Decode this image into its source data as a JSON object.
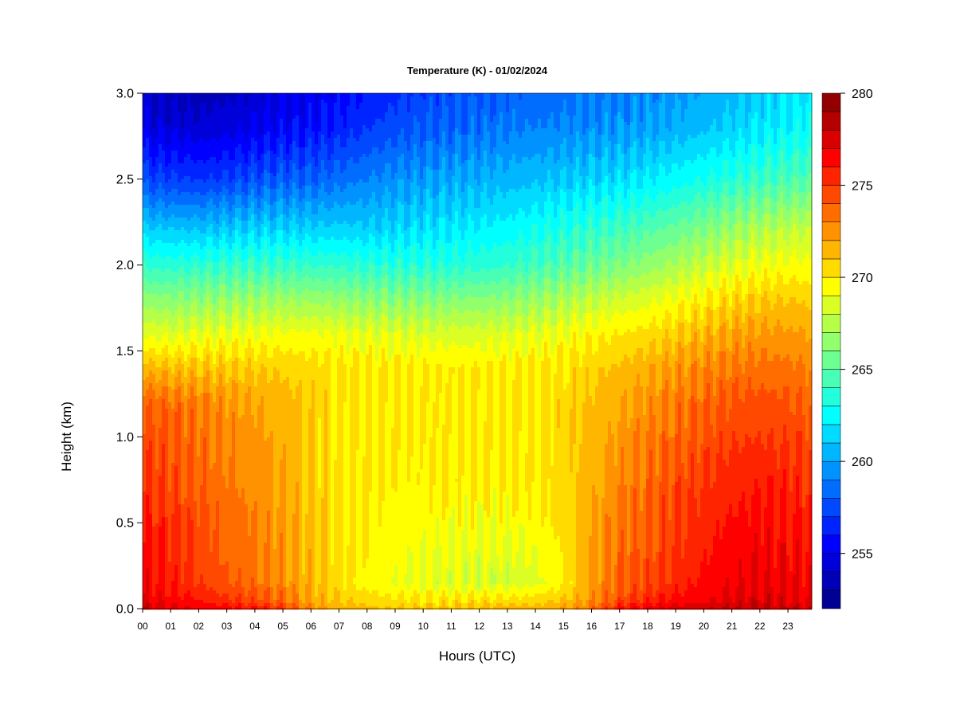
{
  "chart_data": {
    "type": "heatmap",
    "title": "Temperature (K) - 01/02/2024",
    "xlabel": "Hours (UTC)",
    "ylabel": "Height (km)",
    "xlim": [
      0,
      23.85
    ],
    "ylim": [
      0.0,
      3.0
    ],
    "x_ticks": [
      "00",
      "01",
      "02",
      "03",
      "04",
      "05",
      "06",
      "07",
      "08",
      "09",
      "10",
      "11",
      "12",
      "13",
      "14",
      "15",
      "16",
      "17",
      "18",
      "19",
      "20",
      "21",
      "22",
      "23"
    ],
    "y_ticks": [
      "0.0",
      "0.5",
      "1.0",
      "1.5",
      "2.0",
      "2.5",
      "3.0"
    ],
    "hours": [
      0,
      1,
      2,
      3,
      4,
      5,
      6,
      7,
      8,
      9,
      10,
      11,
      12,
      13,
      14,
      15,
      16,
      17,
      18,
      19,
      20,
      21,
      22,
      23,
      23.85
    ],
    "heights_km": [
      0.0,
      0.05,
      0.15,
      0.3,
      0.5,
      0.75,
      1.0,
      1.2,
      1.4,
      1.6,
      1.8,
      2.0,
      2.2,
      2.5,
      2.8,
      3.0
    ],
    "temperature_K": [
      [
        277.8,
        277.2,
        277.0,
        276.5,
        276.0,
        275.0,
        272.5,
        271.5,
        271.3,
        271.0,
        271.0,
        271.2,
        271.3,
        271.4,
        271.5,
        272.0,
        273.5,
        276.0,
        277.0,
        277.5,
        277.8,
        278.0,
        278.0,
        277.8,
        277.5
      ],
      [
        277.0,
        276.5,
        276.0,
        275.2,
        274.5,
        273.5,
        272.0,
        271.0,
        270.5,
        270.2,
        270.2,
        270.2,
        270.3,
        270.3,
        270.5,
        271.0,
        272.5,
        274.5,
        275.5,
        276.3,
        276.8,
        277.3,
        277.5,
        277.3,
        277.0
      ],
      [
        276.5,
        275.8,
        275.0,
        274.2,
        273.5,
        272.8,
        271.5,
        270.3,
        269.6,
        269.0,
        268.8,
        268.6,
        268.4,
        268.3,
        268.7,
        269.8,
        272.2,
        273.8,
        274.6,
        275.5,
        276.2,
        276.8,
        277.0,
        276.8,
        276.4
      ],
      [
        276.2,
        275.5,
        274.6,
        273.8,
        273.2,
        272.5,
        271.2,
        270.3,
        269.8,
        269.3,
        269.0,
        268.9,
        268.7,
        268.6,
        269.0,
        270.0,
        272.0,
        273.5,
        274.3,
        275.2,
        275.9,
        276.5,
        276.8,
        276.5,
        276.2
      ],
      [
        275.9,
        275.2,
        274.4,
        273.6,
        273.0,
        272.3,
        271.0,
        270.2,
        269.9,
        269.6,
        269.5,
        269.4,
        269.3,
        269.3,
        269.6,
        270.4,
        271.8,
        273.2,
        274.0,
        274.9,
        275.6,
        276.2,
        276.4,
        276.2,
        275.8
      ],
      [
        275.2,
        274.6,
        274.0,
        273.2,
        272.6,
        271.9,
        270.8,
        270.2,
        270.0,
        269.9,
        269.9,
        269.9,
        269.9,
        269.9,
        270.0,
        270.6,
        271.6,
        272.8,
        273.6,
        274.4,
        275.0,
        275.6,
        275.8,
        275.6,
        275.2
      ],
      [
        274.5,
        274.0,
        273.5,
        272.8,
        272.3,
        271.7,
        270.8,
        270.2,
        270.1,
        270.0,
        270.0,
        270.0,
        270.0,
        270.0,
        270.1,
        270.6,
        271.3,
        272.3,
        273.0,
        273.7,
        274.3,
        274.8,
        275.0,
        274.8,
        274.5
      ],
      [
        273.9,
        273.5,
        273.0,
        272.5,
        272.0,
        271.5,
        270.8,
        270.3,
        270.1,
        270.0,
        270.0,
        270.0,
        270.0,
        270.0,
        270.1,
        270.5,
        271.1,
        271.9,
        272.5,
        273.1,
        273.7,
        274.2,
        274.4,
        274.2,
        273.9
      ],
      [
        271.5,
        271.3,
        271.2,
        271.0,
        270.9,
        270.8,
        270.5,
        270.2,
        270.1,
        270.0,
        270.0,
        270.0,
        270.0,
        270.0,
        270.1,
        270.3,
        270.7,
        271.2,
        271.7,
        272.3,
        272.8,
        273.2,
        273.4,
        273.3,
        273.0
      ],
      [
        268.8,
        268.6,
        268.8,
        269.0,
        269.1,
        269.2,
        269.2,
        269.0,
        268.8,
        268.6,
        268.5,
        268.5,
        268.5,
        268.6,
        268.8,
        269.2,
        269.6,
        270.0,
        270.4,
        270.9,
        271.5,
        272.0,
        272.3,
        272.2,
        272.0
      ],
      [
        266.5,
        266.3,
        266.4,
        266.6,
        266.7,
        266.8,
        266.7,
        266.5,
        266.3,
        266.2,
        266.1,
        266.1,
        266.2,
        266.4,
        266.7,
        267.2,
        267.8,
        268.2,
        268.7,
        269.3,
        269.9,
        270.5,
        270.9,
        271.0,
        270.8
      ],
      [
        263.8,
        263.6,
        263.7,
        263.9,
        264.0,
        264.0,
        263.9,
        263.8,
        263.6,
        263.5,
        263.5,
        263.5,
        263.6,
        263.9,
        264.3,
        264.8,
        265.4,
        265.9,
        266.5,
        267.2,
        267.9,
        268.6,
        269.1,
        269.3,
        269.2
      ],
      [
        261.3,
        261.1,
        261.0,
        261.2,
        261.4,
        261.5,
        261.4,
        261.4,
        261.3,
        261.5,
        261.8,
        262.0,
        262.2,
        262.5,
        262.9,
        263.4,
        263.9,
        264.3,
        264.8,
        265.4,
        266.1,
        266.8,
        267.4,
        267.8,
        268.0
      ],
      [
        257.4,
        257.1,
        256.9,
        257.2,
        257.6,
        258.0,
        258.1,
        258.5,
        259.0,
        259.5,
        259.8,
        260.1,
        260.3,
        260.5,
        260.8,
        261.0,
        261.3,
        261.6,
        262.0,
        262.5,
        263.0,
        263.5,
        264.0,
        264.5,
        264.8
      ],
      [
        254.8,
        254.5,
        254.3,
        254.6,
        255.0,
        255.5,
        255.8,
        256.3,
        256.9,
        257.5,
        257.9,
        258.2,
        258.5,
        258.8,
        259.0,
        259.2,
        259.4,
        259.6,
        259.9,
        260.3,
        260.8,
        261.3,
        261.8,
        262.3,
        262.6
      ],
      [
        253.9,
        253.6,
        253.5,
        253.8,
        254.2,
        254.7,
        255.0,
        255.6,
        256.2,
        256.8,
        257.3,
        257.6,
        257.9,
        258.2,
        258.4,
        258.6,
        258.8,
        259.0,
        259.3,
        259.7,
        260.2,
        260.7,
        261.2,
        261.7,
        262.0
      ]
    ],
    "colorbar": {
      "min": 252.0,
      "max": 280.0,
      "step": 1.0,
      "ticks": [
        "255",
        "260",
        "265",
        "270",
        "275",
        "280"
      ]
    },
    "grid": false,
    "legend": "colorbar right"
  }
}
